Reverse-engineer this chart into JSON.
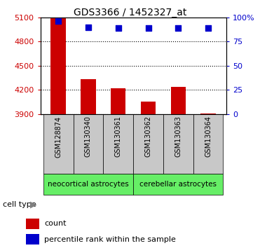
{
  "title": "GDS3366 / 1452327_at",
  "samples": [
    "GSM128874",
    "GSM130340",
    "GSM130361",
    "GSM130362",
    "GSM130363",
    "GSM130364"
  ],
  "counts": [
    5090,
    4330,
    4220,
    4055,
    4240,
    3908
  ],
  "percentile_ranks": [
    96,
    90,
    89,
    89,
    89,
    89
  ],
  "ylim_left": [
    3900,
    5100
  ],
  "ylim_right": [
    0,
    100
  ],
  "yticks_left": [
    3900,
    4200,
    4500,
    4800,
    5100
  ],
  "yticks_right": [
    0,
    25,
    50,
    75,
    100
  ],
  "bar_color": "#cc0000",
  "dot_color": "#0000cc",
  "groups": [
    {
      "label": "neocortical astrocytes",
      "n": 3,
      "color": "#66ee66"
    },
    {
      "label": "cerebellar astrocytes",
      "n": 3,
      "color": "#66ee66"
    }
  ],
  "group_box_color": "#66ee66",
  "cell_type_label": "cell type",
  "legend_count_label": "count",
  "legend_percentile_label": "percentile rank within the sample",
  "tick_area_bg": "#c8c8c8",
  "grid_color": "#000000",
  "bar_width": 0.5,
  "dot_size": 35
}
